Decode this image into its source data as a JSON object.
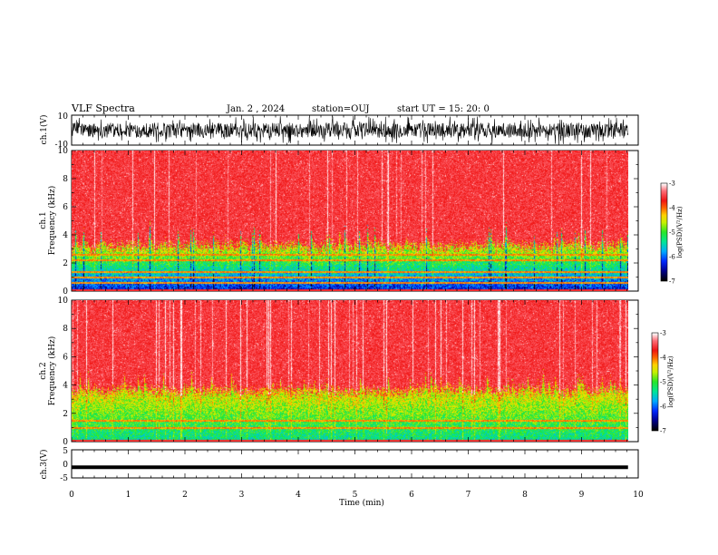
{
  "header": {
    "title": "VLF Spectra",
    "date": "Jan. 2 , 2024",
    "station": "station=OUJ",
    "start": "start UT =  15: 20: 0"
  },
  "chart_data": [
    {
      "type": "line",
      "name": "ch1-waveform",
      "ylabel": "ch.1(V)",
      "ylim": [
        -10,
        10
      ],
      "y_ticks": [
        "10",
        "-10"
      ],
      "xlim": [
        0,
        10
      ],
      "note_values": "dense noisy waveform, amplitude mostly between -10 and 10 V, data to ~9.8 min"
    },
    {
      "type": "heatmap",
      "name": "ch1-spectrogram",
      "ylabel": "ch.1\nFrequency (kHz)",
      "ylabel_lines": [
        "ch.1",
        "Frequency (kHz)"
      ],
      "ylim": [
        0,
        10
      ],
      "y_ticks": [
        "0",
        "2",
        "4",
        "6",
        "8",
        "10"
      ],
      "xlim": [
        0,
        10
      ],
      "colorbar": {
        "label": "log(PSD)(V²/Hz)",
        "ticks": [
          "-3",
          "-4",
          "-5",
          "-6",
          "-7"
        ],
        "range": [
          -7,
          -3
        ]
      },
      "low_band_top_khz": 3.2
    },
    {
      "type": "heatmap",
      "name": "ch2-spectrogram",
      "ylabel_lines": [
        "ch.2",
        "Frequency (kHz)"
      ],
      "ylim": [
        0,
        10
      ],
      "y_ticks": [
        "0",
        "2",
        "4",
        "6",
        "8",
        "10"
      ],
      "xlim": [
        0,
        10
      ],
      "colorbar": {
        "label": "log(PSD)(V²/Hz)",
        "ticks": [
          "-3",
          "-4",
          "-5",
          "-6",
          "-7"
        ],
        "range": [
          -7,
          -3
        ]
      },
      "low_band_top_khz": 3.6
    },
    {
      "type": "line",
      "name": "ch3-waveform",
      "ylabel": "ch.3(V)",
      "ylim": [
        -5,
        5
      ],
      "y_ticks": [
        "5",
        "0",
        "-5"
      ],
      "xlim": [
        0,
        10
      ],
      "constant_value": -1.2
    }
  ],
  "x_axis": {
    "label": "Time (min)",
    "ticks": [
      "0",
      "1",
      "2",
      "3",
      "4",
      "5",
      "6",
      "7",
      "8",
      "9",
      "10"
    ],
    "data_end_min": 9.82
  }
}
